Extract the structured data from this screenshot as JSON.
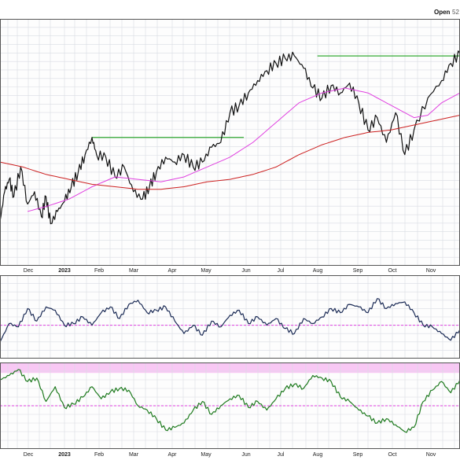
{
  "header": {
    "open_label": "Open",
    "open_value": "52"
  },
  "colors": {
    "background": "#ffffff",
    "plot_background": "#fdfdfd",
    "grid": "#d9dce3",
    "price": "#111111",
    "ma_short": "#e040e0",
    "ma_long": "#cc2020",
    "resistance": "#33aa33",
    "momentum": "#1a2a55",
    "oscillator": "#1e7a1e",
    "reference": "#e040e0",
    "overbought_band": "#f8c8f4",
    "border": "#555555"
  },
  "chart_data": [
    {
      "type": "line",
      "panel": "price",
      "x_axis_labels": [
        "Dec",
        "2023",
        "Feb",
        "Mar",
        "Apr",
        "May",
        "Jun",
        "Jul",
        "Aug",
        "Sep",
        "Oct",
        "Nov"
      ],
      "x_axis_bold": [
        "2023"
      ],
      "x_range": [
        0,
        1
      ],
      "y_range": [
        0,
        100
      ],
      "grid": true,
      "series": [
        {
          "role": "price",
          "x": [
            0,
            0.01,
            0.02,
            0.03,
            0.045,
            0.06,
            0.075,
            0.09,
            0.1,
            0.11,
            0.125,
            0.14,
            0.155,
            0.17,
            0.185,
            0.2,
            0.21,
            0.23,
            0.25,
            0.27,
            0.29,
            0.31,
            0.325,
            0.34,
            0.36,
            0.38,
            0.4,
            0.42,
            0.44,
            0.46,
            0.48,
            0.5,
            0.52,
            0.54,
            0.56,
            0.58,
            0.6,
            0.62,
            0.64,
            0.66,
            0.68,
            0.7,
            0.72,
            0.74,
            0.76,
            0.78,
            0.8,
            0.82,
            0.84,
            0.86,
            0.88,
            0.9,
            0.93,
            0.96,
            0.98,
            1
          ],
          "y": [
            18,
            30,
            35,
            28,
            40,
            25,
            30,
            20,
            28,
            17,
            22,
            26,
            32,
            38,
            45,
            52,
            45,
            44,
            36,
            40,
            30,
            27,
            32,
            38,
            44,
            42,
            45,
            40,
            42,
            48,
            50,
            62,
            65,
            70,
            75,
            79,
            82,
            84,
            85,
            80,
            72,
            68,
            73,
            70,
            74,
            66,
            55,
            60,
            50,
            62,
            45,
            55,
            68,
            75,
            82,
            86
          ]
        },
        {
          "role": "ma_short",
          "x": [
            0.06,
            0.1,
            0.15,
            0.2,
            0.25,
            0.3,
            0.35,
            0.4,
            0.45,
            0.5,
            0.55,
            0.6,
            0.65,
            0.7,
            0.75,
            0.8,
            0.85,
            0.88,
            0.9,
            0.93,
            0.96,
            1
          ],
          "y": [
            22,
            24,
            27,
            32,
            36,
            35,
            34,
            36,
            40,
            44,
            50,
            58,
            66,
            70,
            72,
            70,
            65,
            62,
            60,
            61,
            66,
            70
          ]
        },
        {
          "role": "ma_long",
          "x": [
            0,
            0.05,
            0.1,
            0.15,
            0.2,
            0.25,
            0.3,
            0.35,
            0.4,
            0.45,
            0.5,
            0.55,
            0.6,
            0.65,
            0.7,
            0.75,
            0.8,
            0.85,
            0.9,
            0.95,
            1
          ],
          "y": [
            42,
            40,
            37,
            35,
            33,
            32,
            31,
            31,
            32,
            34,
            35,
            37,
            40,
            45,
            49,
            52,
            54,
            55,
            57,
            59,
            61
          ]
        }
      ],
      "annotations": [
        {
          "type": "hline",
          "x_start": 0.2,
          "x_end": 0.53,
          "y": 52
        },
        {
          "type": "hline",
          "x_start": 0.69,
          "x_end": 1,
          "y": 85
        }
      ]
    },
    {
      "type": "line",
      "panel": "momentum",
      "x_range": [
        0,
        1
      ],
      "y_range": [
        0,
        100
      ],
      "grid": true,
      "reference_line": 40,
      "series": [
        {
          "role": "momentum",
          "x": [
            0,
            0.02,
            0.04,
            0.06,
            0.08,
            0.1,
            0.12,
            0.14,
            0.16,
            0.18,
            0.2,
            0.22,
            0.24,
            0.26,
            0.28,
            0.3,
            0.32,
            0.34,
            0.36,
            0.38,
            0.4,
            0.42,
            0.44,
            0.46,
            0.48,
            0.5,
            0.52,
            0.54,
            0.56,
            0.58,
            0.6,
            0.62,
            0.64,
            0.66,
            0.68,
            0.7,
            0.72,
            0.74,
            0.76,
            0.78,
            0.8,
            0.82,
            0.84,
            0.86,
            0.88,
            0.9,
            0.92,
            0.94,
            0.96,
            0.98,
            1
          ],
          "y": [
            20,
            42,
            38,
            60,
            45,
            62,
            58,
            40,
            42,
            50,
            40,
            55,
            62,
            48,
            65,
            70,
            55,
            58,
            62,
            45,
            30,
            40,
            28,
            45,
            38,
            52,
            58,
            42,
            50,
            40,
            48,
            36,
            30,
            48,
            42,
            50,
            60,
            55,
            65,
            62,
            55,
            72,
            60,
            66,
            68,
            55,
            40,
            38,
            30,
            22,
            35
          ]
        }
      ]
    },
    {
      "type": "line",
      "panel": "oscillator",
      "x_axis_labels": [
        "Dec",
        "2023",
        "Feb",
        "Mar",
        "Apr",
        "May",
        "Jun",
        "Jul",
        "Aug",
        "Sep",
        "Oct",
        "Nov"
      ],
      "x_axis_bold": [
        "2023"
      ],
      "x_range": [
        0,
        1
      ],
      "y_range": [
        0,
        100
      ],
      "grid": true,
      "overbought_band": [
        88,
        100
      ],
      "reference_line": 50,
      "series": [
        {
          "role": "oscillator",
          "x": [
            0,
            0.02,
            0.04,
            0.06,
            0.08,
            0.1,
            0.12,
            0.14,
            0.16,
            0.18,
            0.2,
            0.22,
            0.24,
            0.26,
            0.28,
            0.3,
            0.32,
            0.34,
            0.36,
            0.38,
            0.4,
            0.42,
            0.44,
            0.46,
            0.48,
            0.5,
            0.52,
            0.54,
            0.56,
            0.58,
            0.6,
            0.62,
            0.64,
            0.66,
            0.68,
            0.7,
            0.72,
            0.74,
            0.76,
            0.78,
            0.8,
            0.82,
            0.84,
            0.86,
            0.88,
            0.9,
            0.92,
            0.94,
            0.96,
            0.98,
            1
          ],
          "y": [
            80,
            85,
            92,
            78,
            82,
            55,
            72,
            48,
            52,
            60,
            72,
            58,
            66,
            70,
            68,
            50,
            45,
            35,
            22,
            25,
            30,
            45,
            55,
            40,
            50,
            58,
            62,
            48,
            55,
            45,
            58,
            70,
            75,
            70,
            85,
            82,
            78,
            60,
            55,
            45,
            38,
            30,
            35,
            28,
            20,
            25,
            55,
            68,
            78,
            65,
            80
          ]
        }
      ]
    }
  ]
}
